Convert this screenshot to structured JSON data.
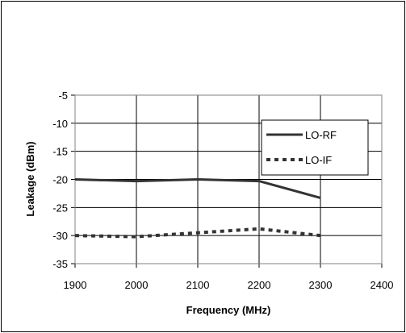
{
  "chart_data": {
    "type": "line",
    "title": "",
    "xlabel": "Frequency (MHz)",
    "ylabel": "Leakage (dBm)",
    "xlim": [
      1900,
      2400
    ],
    "ylim": [
      -35,
      -5
    ],
    "x_ticks": [
      "1900",
      "2000",
      "2100",
      "2200",
      "2300",
      "2400"
    ],
    "y_ticks": [
      "-5",
      "-10",
      "-15",
      "-20",
      "-25",
      "-30",
      "-35"
    ],
    "grid": true,
    "legend_position": "right",
    "series": [
      {
        "name": "LO-RF",
        "style": "solid",
        "color": "#333333",
        "x": [
          1900,
          2000,
          2100,
          2200,
          2300
        ],
        "y": [
          -20.0,
          -20.3,
          -20.0,
          -20.3,
          -23.3
        ]
      },
      {
        "name": "LO-IF",
        "style": "dotted",
        "color": "#333333",
        "x": [
          1900,
          2000,
          2100,
          2200,
          2300
        ],
        "y": [
          -30.0,
          -30.2,
          -29.5,
          -28.8,
          -30.0
        ]
      }
    ]
  }
}
